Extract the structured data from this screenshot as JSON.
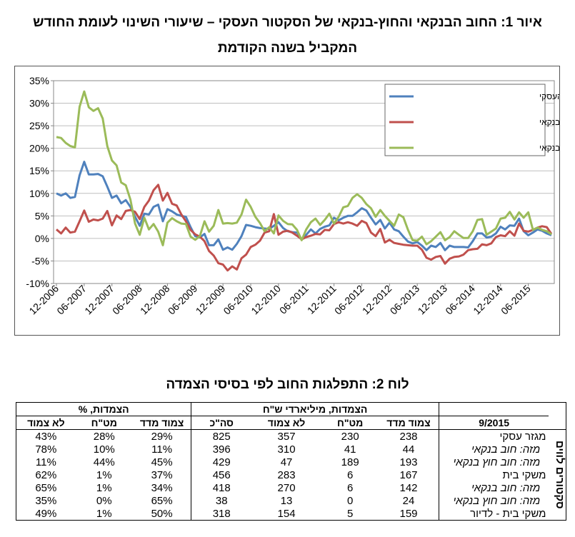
{
  "figure_title_line1": "איור 1: החוב הבנקאי והחוץ-בנקאי של הסקטור העסקי – שיעורי השינוי לעומת החודש",
  "figure_title_line2": "המקביל בשנה הקודמת",
  "chart_data": {
    "type": "line",
    "ylim": [
      -10,
      35
    ],
    "yticks": [
      "-10%",
      "-5%",
      "0%",
      "5%",
      "10%",
      "15%",
      "20%",
      "25%",
      "30%",
      "35%"
    ],
    "xticks": [
      "12-2006",
      "06-2007",
      "12-2007",
      "06-2008",
      "12-2008",
      "06-2009",
      "12-2009",
      "06-2010",
      "12-2010",
      "06-2011",
      "12-2011",
      "06-2012",
      "12-2012",
      "06-2013",
      "12-2013",
      "06-2014",
      "12-2014",
      "06-2015"
    ],
    "legend_position": "top-right",
    "grid": true,
    "series": [
      {
        "name": "סך החוב של הסקטור העסקי",
        "color": "#4f81bd",
        "values": [
          10,
          9.5,
          10,
          9,
          9.2,
          14,
          17,
          14.2,
          14.2,
          14.3,
          13.8,
          11.5,
          9,
          9.5,
          7.8,
          8.5,
          7,
          4.8,
          2.8,
          5.5,
          5.3,
          7,
          7.5,
          3.8,
          6.5,
          6,
          5.3,
          5,
          4.8,
          2.5,
          0.5,
          0.2,
          1,
          -1.5,
          -1.5,
          -0.2,
          -2.5,
          -2,
          -2.5,
          -1.2,
          0.5,
          3,
          2.8,
          2.5,
          2.3,
          2.2,
          2.1,
          2.8,
          3.6,
          2.3,
          1.6,
          1.4,
          1.3,
          -0.2,
          0.8,
          2,
          1.1,
          2.1,
          2.6,
          2.9,
          4.6,
          4,
          4.6,
          5,
          5,
          5.8,
          6.7,
          6.2,
          4.6,
          3.1,
          4.1,
          2.2,
          3.5,
          2,
          1.6,
          0.4,
          -0.7,
          -1.1,
          -0.8,
          -1.6,
          -2.6,
          -1.6,
          -1.9,
          -1,
          -2.6,
          -1.6,
          -1.9,
          -1.9,
          -1.9,
          -2,
          -0.6,
          1.1,
          1.1,
          0.2,
          0.4,
          1.1,
          2.6,
          2,
          2.9,
          2.8,
          4.4,
          1.6,
          0.7,
          1.3,
          2,
          1.7,
          1.1,
          0.7
        ]
      },
      {
        "name": "בנקאי",
        "color": "#c0504d",
        "values": [
          2,
          1.1,
          2.4,
          1.3,
          1.5,
          3.8,
          6.2,
          3.7,
          4.2,
          4,
          4.4,
          6.1,
          2.9,
          5.1,
          4.3,
          6.1,
          6.3,
          5.9,
          4.3,
          7,
          8.4,
          10.7,
          11.9,
          8.4,
          10.1,
          7.7,
          7.3,
          5.3,
          3.8,
          1.9,
          0.9,
          0.4,
          -0.6,
          -2.8,
          -3.8,
          -5.5,
          -5.8,
          -7.1,
          -6.2,
          -6.9,
          -4.4,
          -3.6,
          -1.9,
          -1.4,
          -0.5,
          1.3,
          1.6,
          5.4,
          0.8,
          1.5,
          1.7,
          1.3,
          0.6,
          -0.2,
          0.3,
          0.6,
          1,
          0.9,
          1.9,
          1.8,
          3.2,
          3.6,
          3.3,
          3.6,
          3.3,
          2.8,
          3.9,
          3.4,
          1.3,
          0.5,
          2.1,
          -0.9,
          -0.3,
          -1,
          -1.2,
          -1.4,
          -1.5,
          -1.6,
          -1.6,
          -2.5,
          -4.3,
          -4.7,
          -4.1,
          -3.9,
          -5.6,
          -4.5,
          -4.1,
          -4,
          -3.6,
          -2.6,
          -2.4,
          -2.3,
          -1.3,
          -1.5,
          -1.1,
          0.3,
          0.7,
          0.5,
          1.6,
          0.6,
          3.3,
          1.7,
          1.5,
          1.9,
          2.4,
          2.7,
          2.5,
          1
        ]
      },
      {
        "name": "חוץ בנקאי",
        "color": "#9bbb59",
        "values": [
          22.5,
          22.3,
          21.2,
          20.5,
          20.2,
          29.2,
          32.6,
          29.1,
          28.3,
          28.9,
          26.6,
          20.5,
          17.3,
          16.2,
          12.4,
          11.8,
          8.6,
          3.3,
          0.8,
          4.6,
          2,
          3.2,
          1.5,
          -1.5,
          3.5,
          4.5,
          3.8,
          3.3,
          3.2,
          0.4,
          -0.3,
          0.5,
          3.8,
          1.5,
          2.8,
          6.3,
          3.3,
          3.4,
          3.3,
          3.5,
          5.3,
          8.6,
          7,
          4.8,
          3.4,
          1.6,
          2.5,
          1.1,
          5.1,
          3.9,
          3.2,
          3.1,
          1.9,
          -0.4,
          2,
          3.6,
          4.4,
          3,
          4.1,
          5.5,
          3.3,
          4.8,
          6.9,
          7.2,
          9,
          9.8,
          9,
          7.6,
          6.7,
          4.8,
          6.3,
          5,
          3.9,
          2.8,
          5.3,
          4.7,
          1.9,
          -0.4,
          -0.5,
          0.4,
          -1.3,
          -0.6,
          0.4,
          1.4,
          -0.4,
          0.3,
          1.6,
          0.8,
          0.1,
          0.1,
          1.6,
          4.1,
          4.3,
          0.8,
          1.5,
          2.2,
          4.4,
          4.6,
          5.9,
          4.2,
          5.8,
          4.6,
          5.8,
          1.9,
          2.4,
          1.9,
          1.6,
          0.9
        ]
      }
    ]
  },
  "table_title": "לוח 2: התפלגות החוב לפי בסיסי הצמדה",
  "table": {
    "group_headers": [
      "הצמדות, מיליארדי ש\"ח",
      "הצמדות, %"
    ],
    "date_label": "9/2015",
    "columns_billions": [
      "צמוד מדד",
      "מט\"ח",
      "לא צמוד",
      "סה\"כ"
    ],
    "columns_percent": [
      "צמוד מדד",
      "מט\"ח",
      "לא צמוד"
    ],
    "side_label": "סקטורים לווים",
    "rows": [
      {
        "label": "מגזר עסקי",
        "indent": false,
        "vals": [
          "238",
          "230",
          "357",
          "825",
          "29%",
          "28%",
          "43%"
        ]
      },
      {
        "label": "מזה: חוב בנקאי",
        "indent": true,
        "vals": [
          "44",
          "41",
          "310",
          "396",
          "11%",
          "10%",
          "78%"
        ]
      },
      {
        "label": "מזה: חוב חוץ בנקאי",
        "indent": true,
        "vals": [
          "193",
          "189",
          "47",
          "429",
          "45%",
          "44%",
          "11%"
        ]
      },
      {
        "label": "משקי בית",
        "indent": false,
        "vals": [
          "167",
          "6",
          "283",
          "456",
          "37%",
          "1%",
          "62%"
        ]
      },
      {
        "label": "מזה: חוב בנקאי",
        "indent": true,
        "vals": [
          "142",
          "6",
          "270",
          "418",
          "34%",
          "1%",
          "65%"
        ]
      },
      {
        "label": "מזה: חוב חוץ בנקאי",
        "indent": true,
        "vals": [
          "24",
          "0",
          "13",
          "38",
          "65%",
          "0%",
          "35%"
        ]
      },
      {
        "label": "משקי בית - לדיור",
        "indent": false,
        "vals": [
          "159",
          "5",
          "154",
          "318",
          "50%",
          "1%",
          "49%"
        ]
      }
    ]
  }
}
